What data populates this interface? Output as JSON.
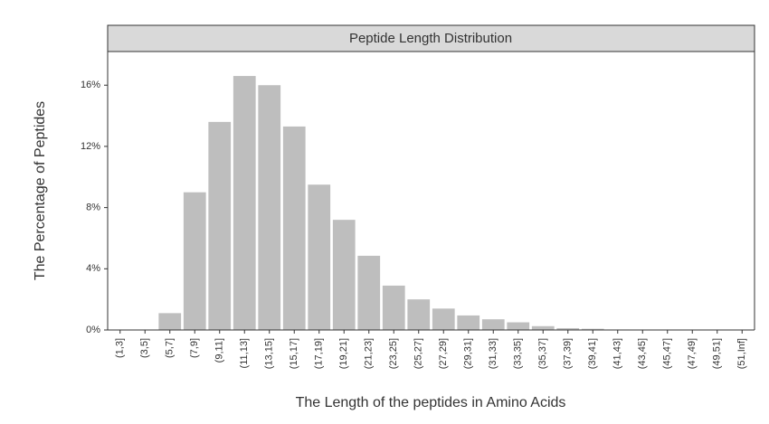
{
  "chart_data": {
    "type": "bar",
    "title": "Peptide Length Distribution",
    "x_label": "The Length of the peptides in Amino Acids",
    "y_label": "The Percentage of Peptides",
    "categories": [
      "(1,3]",
      "(3,5]",
      "(5,7]",
      "(7,9]",
      "(9,11]",
      "(11,13]",
      "(13,15]",
      "(15,17]",
      "(17,19]",
      "(19,21]",
      "(21,23]",
      "(23,25]",
      "(25,27]",
      "(27,29]",
      "(29,31]",
      "(31,33]",
      "(33,35]",
      "(35,37]",
      "(37,39]",
      "(39,41]",
      "(41,43]",
      "(43,45]",
      "(45,47]",
      "(47,49]",
      "(49,51]",
      "(51,Inf]"
    ],
    "values": [
      0,
      0,
      1.1,
      9.0,
      13.6,
      16.6,
      16.0,
      13.3,
      9.5,
      7.2,
      4.85,
      2.9,
      2.0,
      1.4,
      0.95,
      0.7,
      0.5,
      0.25,
      0.12,
      0.08,
      0.03,
      0.02,
      0.02,
      0.01,
      0.01,
      0.01
    ],
    "color": "#bebebe",
    "ylim": [
      0,
      18.2
    ],
    "yticks": [
      {
        "value": 0,
        "label": "0%"
      },
      {
        "value": 4,
        "label": "4%"
      },
      {
        "value": 8,
        "label": "8%"
      },
      {
        "value": 12,
        "label": "12%"
      },
      {
        "value": 16,
        "label": "16%"
      }
    ]
  }
}
